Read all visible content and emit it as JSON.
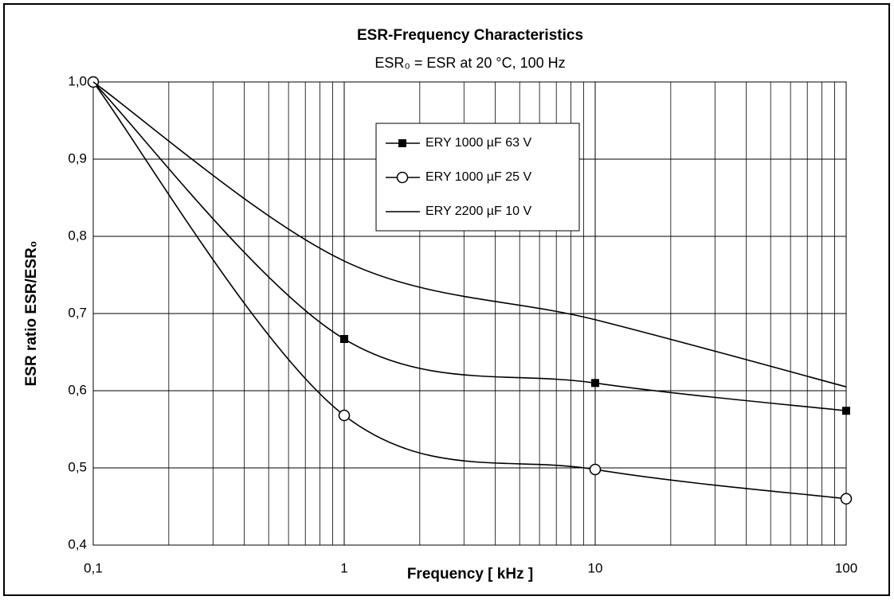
{
  "chart_data": {
    "type": "line",
    "title": "ESR-Frequency Characteristics",
    "subtitle": "ESR₀ = ESR at 20 °C, 100 Hz",
    "xlabel": "Frequency [ kHz ]",
    "ylabel": "ESR ratio ESR/ESR₀",
    "x": [
      0.1,
      1,
      10,
      100
    ],
    "series": [
      {
        "name": "ERY 1000 µF 63 V",
        "color": "#000000",
        "marker": "square",
        "values": [
          1.0,
          0.667,
          0.61,
          0.574
        ]
      },
      {
        "name": "ERY 1000 µF 25 V",
        "color": "#000000",
        "marker": "circle",
        "values": [
          1.0,
          0.568,
          0.498,
          0.46
        ]
      },
      {
        "name": "ERY 2200 µF 10 V",
        "color": "#000000",
        "marker": "none",
        "values": [
          1.0,
          0.768,
          0.692,
          0.605
        ]
      }
    ],
    "xlog": true,
    "xlim": [
      0.1,
      100
    ],
    "xticks": [
      {
        "value": 0.1,
        "label": "0,1"
      },
      1,
      10,
      100
    ],
    "ylim": [
      0.4,
      1.0
    ],
    "yticks": [
      {
        "value": 0.4,
        "label": "0,4"
      },
      {
        "value": 0.5,
        "label": "0,5"
      },
      {
        "value": 0.6,
        "label": "0,6"
      },
      {
        "value": 0.7,
        "label": "0,7"
      },
      {
        "value": 0.8,
        "label": "0,8"
      },
      {
        "value": 0.9,
        "label": "0,9"
      },
      {
        "value": 1.0,
        "label": "1,0"
      }
    ],
    "grid": true,
    "legend": "upper center"
  }
}
